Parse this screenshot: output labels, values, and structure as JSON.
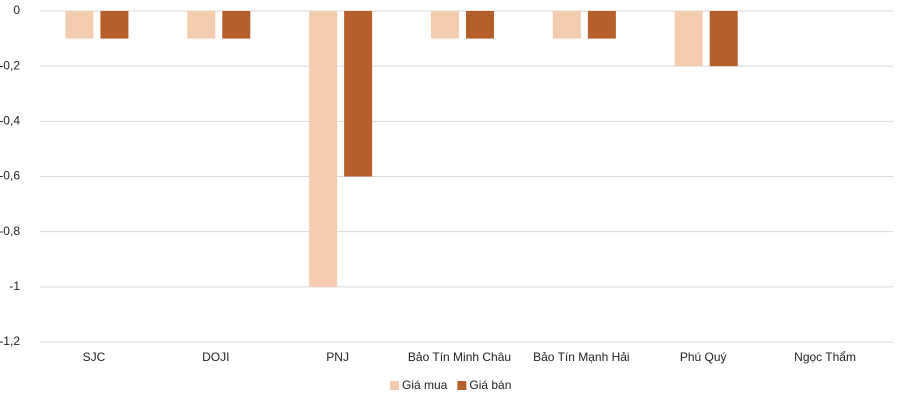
{
  "chart_data": {
    "type": "bar",
    "categories": [
      "SJC",
      "DOJI",
      "PNJ",
      "Bảo Tín Minh Châu",
      "Bảo Tín Mạnh Hải",
      "Phú Quý",
      "Ngọc Thẩm"
    ],
    "series": [
      {
        "name": "Giá mua",
        "color": "#f5cbae",
        "values": [
          -0.1,
          -0.1,
          -1,
          -0.1,
          -0.1,
          -0.2,
          0
        ]
      },
      {
        "name": "Giá bán",
        "color": "#b65f2b",
        "values": [
          -0.1,
          -0.1,
          -0.6,
          -0.1,
          -0.1,
          -0.2,
          0
        ]
      }
    ],
    "ylim": [
      -1.2,
      0
    ],
    "yticks": [
      0,
      {
        "value": -0.2,
        "label": "-0,2"
      },
      {
        "value": -0.4,
        "label": "-0,4"
      },
      {
        "value": -0.6,
        "label": "-0,6"
      },
      {
        "value": -0.8,
        "label": "-0,8"
      },
      -1,
      {
        "value": -1.2,
        "label": "-1,2"
      }
    ],
    "grid": true,
    "legend": "bottom"
  }
}
